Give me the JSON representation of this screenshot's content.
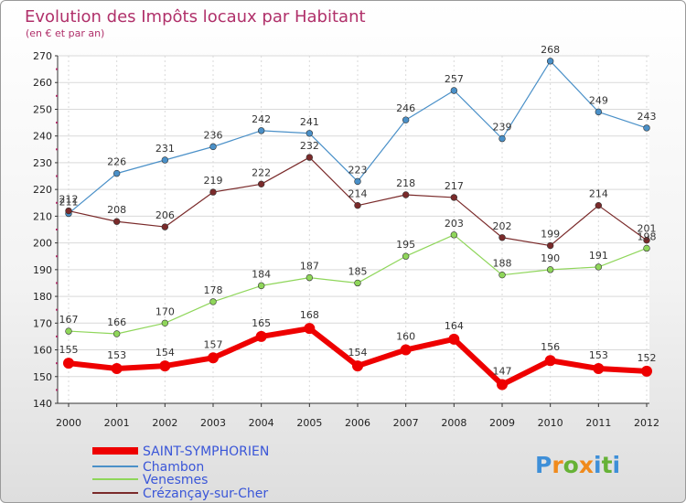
{
  "chart_data": {
    "type": "line",
    "title": "Evolution des Impôts locaux par Habitant",
    "subtitle": "(en € et par an)",
    "xlabel": "",
    "ylabel": "",
    "ylim": [
      140,
      270
    ],
    "yticks": [
      140,
      150,
      160,
      170,
      180,
      190,
      200,
      210,
      220,
      230,
      240,
      250,
      260,
      270
    ],
    "grid": true,
    "legend": "bottom-left",
    "x": [
      "2000",
      "2001",
      "2002",
      "2003",
      "2004",
      "2005",
      "2006",
      "2007",
      "2008",
      "2009",
      "2010",
      "2011",
      "2012"
    ],
    "series": [
      {
        "name": "SAINT-SYMPHORIEN",
        "color": "#ee0000",
        "values": [
          155,
          153,
          154,
          157,
          165,
          168,
          154,
          160,
          164,
          147,
          156,
          153,
          152
        ]
      },
      {
        "name": "Chambon",
        "color": "#4a90c8",
        "values": [
          211,
          226,
          231,
          236,
          242,
          241,
          223,
          246,
          257,
          239,
          268,
          249,
          243
        ]
      },
      {
        "name": "Venesmes",
        "color": "#8fd65a",
        "values": [
          167,
          166,
          170,
          178,
          184,
          187,
          185,
          195,
          203,
          188,
          190,
          191,
          198
        ]
      },
      {
        "name": "Crézançay-sur-Cher",
        "color": "#7a2a2a",
        "values": [
          212,
          208,
          206,
          219,
          222,
          232,
          214,
          218,
          217,
          202,
          199,
          214,
          201
        ]
      }
    ]
  },
  "brand": {
    "logo_letters": [
      "P",
      "r",
      "o",
      "x",
      "i",
      "t",
      "i"
    ],
    "logo_colors": [
      "#3e8fd8",
      "#f08a1c",
      "#66b236",
      "#f08a1c",
      "#3e8fd8",
      "#66b236",
      "#3e8fd8"
    ]
  }
}
